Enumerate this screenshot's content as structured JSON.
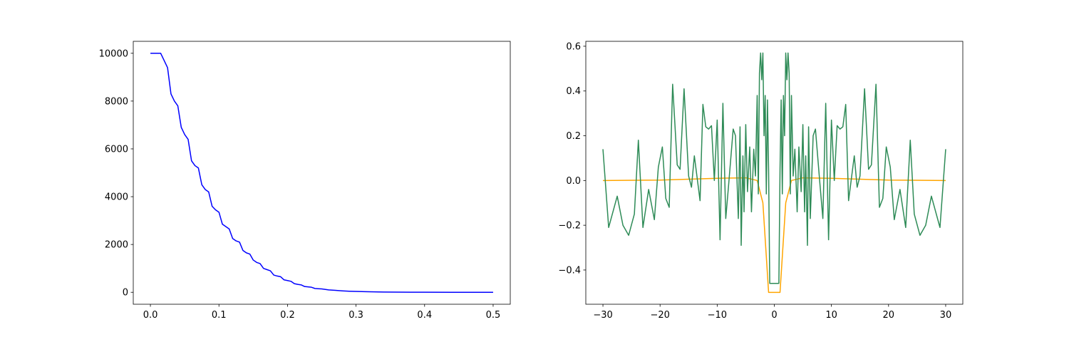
{
  "chart_data": [
    {
      "type": "line",
      "xlim": [
        -0.025,
        0.525
      ],
      "ylim": [
        -500,
        10500
      ],
      "xticks": [
        {
          "value": 0,
          "label": "0.0"
        },
        0.1,
        0.2,
        0.3,
        0.4,
        0.5
      ],
      "yticks": [
        0,
        2000,
        4000,
        6000,
        8000,
        10000
      ],
      "series": [
        {
          "color": "#0000ff",
          "x": [
            0,
            0.005,
            0.01,
            0.015,
            0.02,
            0.025,
            0.03,
            0.035,
            0.04,
            0.045,
            0.05,
            0.055,
            0.06,
            0.065,
            0.07,
            0.075,
            0.08,
            0.085,
            0.09,
            0.095,
            0.1,
            0.105,
            0.11,
            0.115,
            0.12,
            0.125,
            0.13,
            0.135,
            0.14,
            0.145,
            0.15,
            0.155,
            0.16,
            0.165,
            0.17,
            0.175,
            0.18,
            0.185,
            0.19,
            0.195,
            0.2,
            0.205,
            0.21,
            0.215,
            0.22,
            0.225,
            0.23,
            0.235,
            0.24,
            0.245,
            0.25,
            0.26,
            0.27,
            0.28,
            0.29,
            0.3,
            0.32,
            0.34,
            0.36,
            0.38,
            0.4,
            0.45,
            0.5
          ],
          "values": [
            10000,
            10000,
            10000,
            10000,
            9700,
            9400,
            8300,
            8000,
            7800,
            6900,
            6600,
            6400,
            5500,
            5300,
            5200,
            4500,
            4300,
            4200,
            3600,
            3450,
            3350,
            2850,
            2750,
            2650,
            2250,
            2150,
            2100,
            1750,
            1650,
            1600,
            1350,
            1250,
            1200,
            1000,
            950,
            900,
            720,
            680,
            650,
            520,
            490,
            460,
            360,
            330,
            310,
            240,
            225,
            210,
            160,
            150,
            140,
            100,
            80,
            60,
            45,
            35,
            20,
            12,
            7,
            4,
            2,
            0,
            0
          ]
        }
      ]
    },
    {
      "type": "line",
      "xlim": [
        -33,
        33
      ],
      "ylim": [
        -0.553,
        0.622
      ],
      "xticks": [
        {
          "value": -30,
          "label": "−30"
        },
        {
          "value": -20,
          "label": "−20"
        },
        {
          "value": -10,
          "label": "−10"
        },
        0,
        10,
        20,
        30
      ],
      "yticks": [
        {
          "value": -0.4,
          "label": "−0.4"
        },
        {
          "value": -0.2,
          "label": "−0.2"
        },
        {
          "value": 0,
          "label": "0.0"
        },
        0.2,
        0.4,
        0.6
      ],
      "series": [
        {
          "color": "#ffa500",
          "x": [
            -30,
            -20,
            -10,
            -5,
            -3,
            -2,
            -1.5,
            -1,
            1,
            1.5,
            2,
            3,
            5,
            10,
            20,
            30
          ],
          "values": [
            0,
            0.002,
            0.01,
            0.012,
            0,
            -0.1,
            -0.3,
            -0.5,
            -0.5,
            -0.3,
            -0.1,
            0,
            0.012,
            0.01,
            0.002,
            0
          ]
        },
        {
          "color": "#2e8b57",
          "x": [
            -30,
            -29,
            -27.5,
            -26.5,
            -25.5,
            -24.5,
            -23.8,
            -23,
            -22,
            -21,
            -20.3,
            -19.6,
            -19,
            -18.4,
            -17.8,
            -17,
            -16.5,
            -15.8,
            -15,
            -14.5,
            -14,
            -13,
            -12.5,
            -12,
            -11.5,
            -11,
            -10.5,
            -10,
            -9.5,
            -9,
            -8.5,
            -8,
            -7.2,
            -6.8,
            -6.3,
            -6,
            -5.8,
            -5.5,
            -5.3,
            -5,
            -4.7,
            -4.3,
            -4,
            -3.6,
            -3.3,
            -3,
            -2.8,
            -2.6,
            -2.4,
            -2.2,
            -2,
            -1.8,
            -1.6,
            -1.4,
            -1.2,
            -1,
            -0.8,
            0.8,
            1,
            1.2,
            1.4,
            1.6,
            1.8,
            2,
            2.2,
            2.4,
            2.6,
            2.8,
            3,
            3.3,
            3.6,
            4,
            4.3,
            4.7,
            5,
            5.3,
            5.5,
            5.8,
            6,
            6.3,
            6.8,
            7.2,
            8,
            8.5,
            9,
            9.5,
            10,
            10.5,
            11,
            11.5,
            12,
            12.5,
            13,
            14,
            14.5,
            15,
            15.8,
            16.5,
            17,
            17.8,
            18.4,
            19,
            19.6,
            20.3,
            21,
            22,
            23,
            23.8,
            24.5,
            25.5,
            26.5,
            27.5,
            29,
            30
          ],
          "values": [
            0.14,
            -0.21,
            -0.07,
            -0.2,
            -0.245,
            -0.15,
            0.18,
            -0.21,
            -0.04,
            -0.175,
            0.06,
            0.15,
            -0.08,
            -0.12,
            0.43,
            0.07,
            0.05,
            0.41,
            0.02,
            -0.03,
            0.11,
            -0.09,
            0.34,
            0.24,
            0.23,
            0.245,
            0.0,
            0.27,
            -0.265,
            0.345,
            -0.17,
            -0.02,
            0.23,
            0.2,
            -0.17,
            0.24,
            -0.29,
            0.11,
            -0.14,
            0.25,
            -0.05,
            0.15,
            -0.14,
            0.14,
            0.02,
            0.38,
            -0.06,
            0.48,
            0.57,
            0.45,
            0.57,
            0.2,
            0.38,
            -0.06,
            0.36,
            0.05,
            -0.46,
            -0.46,
            0.05,
            0.36,
            -0.06,
            0.38,
            0.2,
            0.57,
            0.45,
            0.57,
            0.48,
            -0.06,
            0.38,
            0.02,
            0.14,
            -0.14,
            0.15,
            -0.05,
            0.25,
            -0.14,
            0.11,
            -0.29,
            0.24,
            -0.17,
            0.2,
            0.23,
            -0.02,
            -0.17,
            0.345,
            -0.265,
            0.27,
            0.0,
            0.245,
            0.23,
            0.24,
            0.34,
            -0.09,
            0.11,
            -0.03,
            0.02,
            0.41,
            0.05,
            0.07,
            0.43,
            -0.12,
            -0.08,
            0.15,
            0.06,
            -0.175,
            -0.04,
            -0.21,
            0.18,
            -0.15,
            -0.245,
            -0.2,
            -0.07,
            -0.21,
            0.14
          ]
        }
      ]
    }
  ]
}
